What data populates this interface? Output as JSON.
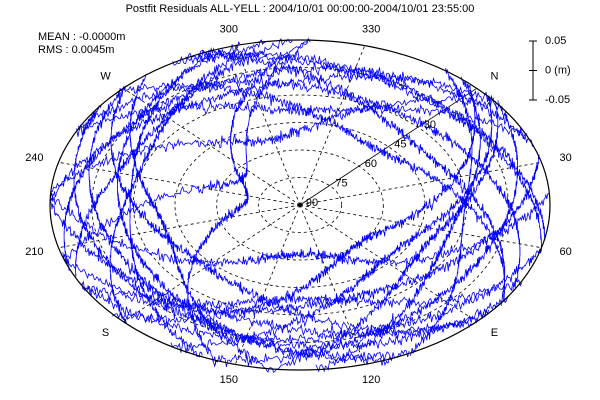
{
  "chart_data": {
    "type": "skyplot",
    "title": "Postfit Residuals ALL-YELL : 2004/10/01 00:00:00-2004/10/01 23:55:00",
    "annotations": [
      "MEAN : -0.0000m",
      "RMS : 0.0045m"
    ],
    "azimuth_ticks": [
      {
        "value": 0,
        "label": "N"
      },
      30,
      60,
      {
        "value": 90,
        "label": "E"
      },
      120,
      150,
      {
        "value": 180,
        "label": "S"
      },
      210,
      240,
      {
        "value": 270,
        "label": "W"
      },
      300,
      330
    ],
    "elevation_ticks": [
      30,
      45,
      60,
      75,
      90
    ],
    "scale_lim": [
      -0.05,
      0.05
    ],
    "scale_ticks": [
      0.05,
      {
        "value": 0,
        "label": "0 (m)"
      },
      -0.05
    ],
    "color": "#0000ff"
  }
}
